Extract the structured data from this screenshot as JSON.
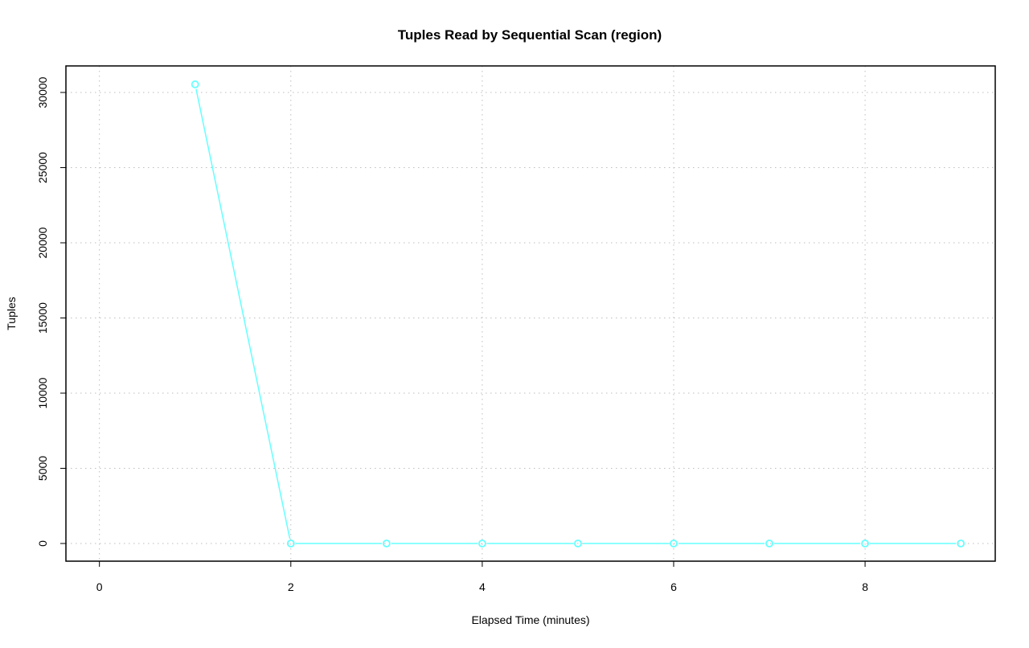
{
  "chart_data": {
    "type": "line",
    "title": "Tuples Read by Sequential Scan (region)",
    "xlabel": "Elapsed Time (minutes)",
    "ylabel": "Tuples",
    "x": [
      1,
      2,
      3,
      4,
      5,
      6,
      7,
      8,
      9
    ],
    "series": [
      {
        "values": [
          30540,
          0,
          0,
          0,
          0,
          0,
          0,
          0,
          0
        ],
        "color": "#66FFFF",
        "marker": "open-circle"
      }
    ],
    "xticks": [
      0,
      2,
      4,
      6,
      8
    ],
    "xtick_labels": [
      "0",
      "2",
      "4",
      "6",
      "8"
    ],
    "yticks": [
      0,
      5000,
      10000,
      15000,
      20000,
      25000,
      30000
    ],
    "ytick_labels": [
      "0",
      "5000",
      "10000",
      "15000",
      "20000",
      "25000",
      "30000"
    ],
    "xlim": [
      -0.35,
      9.36
    ],
    "ylim": [
      -1176,
      31765
    ],
    "grid": true,
    "grid_style": "dotted",
    "grid_xticks": [
      0,
      2,
      4,
      6,
      8
    ],
    "grid_yticks": [
      0,
      5000,
      10000,
      15000,
      20000,
      25000,
      30000
    ],
    "grid_color": "#BEBEBE"
  }
}
